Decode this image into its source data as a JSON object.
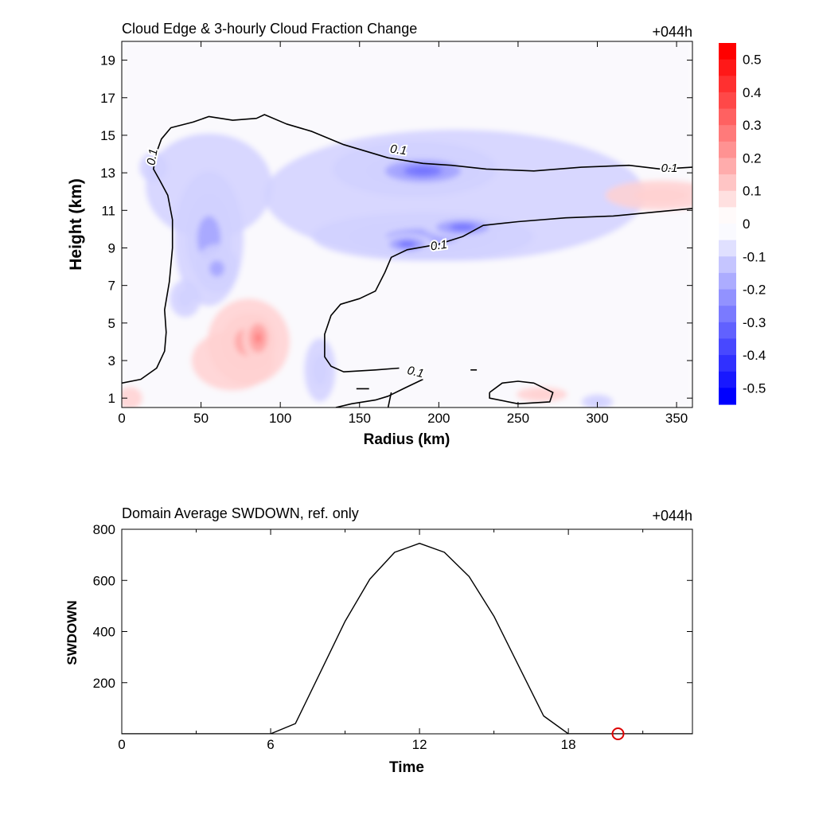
{
  "colors": {
    "positive": "#ff0000",
    "negative": "#0000ff",
    "contour": "#000000",
    "marker": "#dd0000"
  },
  "chart_data": [
    {
      "type": "heatmap",
      "title": "Cloud Edge & 3-hourly Cloud Fraction Change",
      "time_label": "+044h",
      "xlabel": "Radius (km)",
      "ylabel": "Height (km)",
      "xlim": [
        0,
        360
      ],
      "ylim": [
        0.5,
        20
      ],
      "xticks": [
        "0",
        "50",
        "100",
        "150",
        "200",
        "250",
        "300",
        "350"
      ],
      "yticks": [
        "1",
        "3",
        "5",
        "7",
        "9",
        "11",
        "13",
        "15",
        "17",
        "19"
      ],
      "colorbar": {
        "min": -0.55,
        "max": 0.55,
        "levels": 22,
        "labels": [
          "0.5",
          "0.4",
          "0.3",
          "0.2",
          "0.1",
          "0",
          "-0.1",
          "-0.2",
          "-0.3",
          "-0.4",
          "-0.5"
        ]
      },
      "contour_value": "0.1",
      "contour_labels": [
        "0.1",
        "0.1",
        "0.1",
        "0.1",
        "0.1"
      ],
      "features": [
        {
          "sign": "negative",
          "x": 190,
          "y": 13.1,
          "rx": 36,
          "ry": 0.9,
          "v": -0.32
        },
        {
          "sign": "negative",
          "x": 185,
          "y": 13.2,
          "rx": 52,
          "ry": 1.5,
          "v": -0.12
        },
        {
          "sign": "negative",
          "x": 215,
          "y": 10.1,
          "rx": 25,
          "ry": 0.6,
          "v": -0.3
        },
        {
          "sign": "negative",
          "x": 180,
          "y": 9.2,
          "rx": 17,
          "ry": 0.55,
          "v": -0.3
        },
        {
          "sign": "negative",
          "x": 190,
          "y": 9.6,
          "rx": 70,
          "ry": 1.3,
          "v": -0.15
        },
        {
          "sign": "negative",
          "x": 55,
          "y": 9.5,
          "rx": 22,
          "ry": 3.6,
          "v": -0.13
        },
        {
          "sign": "negative",
          "x": 60,
          "y": 7.9,
          "rx": 14,
          "ry": 1.3,
          "v": -0.14
        },
        {
          "sign": "negative",
          "x": 40,
          "y": 6.3,
          "rx": 10,
          "ry": 1.0,
          "v": -0.12
        },
        {
          "sign": "negative",
          "x": 55,
          "y": 12.3,
          "rx": 40,
          "ry": 2.8,
          "v": -0.07
        },
        {
          "sign": "negative",
          "x": 20,
          "y": 13.3,
          "rx": 9,
          "ry": 0.8,
          "v": -0.1
        },
        {
          "sign": "negative",
          "x": 125,
          "y": 2.5,
          "rx": 10,
          "ry": 1.7,
          "v": -0.12
        },
        {
          "sign": "negative",
          "x": 210,
          "y": 11.8,
          "rx": 120,
          "ry": 3.5,
          "v": -0.05
        },
        {
          "sign": "negative",
          "x": 300,
          "y": 0.8,
          "rx": 10,
          "ry": 0.4,
          "v": -0.12
        },
        {
          "sign": "positive",
          "x": 86,
          "y": 4.2,
          "rx": 10,
          "ry": 1.3,
          "v": 0.26
        },
        {
          "sign": "positive",
          "x": 80,
          "y": 4.0,
          "rx": 26,
          "ry": 2.3,
          "v": 0.13
        },
        {
          "sign": "positive",
          "x": 70,
          "y": 3.0,
          "rx": 26,
          "ry": 1.6,
          "v": 0.07
        },
        {
          "sign": "positive",
          "x": 340,
          "y": 11.8,
          "rx": 35,
          "ry": 0.8,
          "v": 0.1
        },
        {
          "sign": "positive",
          "x": 265,
          "y": 1.2,
          "rx": 16,
          "ry": 0.4,
          "v": 0.08
        },
        {
          "sign": "positive",
          "x": 5,
          "y": 1.0,
          "rx": 8,
          "ry": 0.6,
          "v": 0.06
        }
      ],
      "contours": [
        [
          [
            0,
            1.8
          ],
          [
            12,
            2.0
          ],
          [
            22,
            2.6
          ],
          [
            27,
            3.5
          ],
          [
            28,
            4.5
          ],
          [
            27,
            5.7
          ],
          [
            30,
            7.2
          ],
          [
            32,
            9.0
          ],
          [
            32,
            10.5
          ],
          [
            29,
            11.8
          ],
          [
            24,
            12.6
          ],
          [
            20,
            13.2
          ],
          [
            22,
            14.1
          ],
          [
            25,
            14.8
          ],
          [
            31,
            15.4
          ],
          [
            45,
            15.7
          ],
          [
            55,
            16.0
          ],
          [
            70,
            15.8
          ],
          [
            85,
            15.9
          ],
          [
            90,
            16.1
          ],
          [
            104,
            15.6
          ],
          [
            120,
            15.2
          ],
          [
            140,
            14.5
          ],
          [
            152,
            14.2
          ],
          [
            168,
            13.8
          ],
          [
            190,
            13.5
          ],
          [
            208,
            13.4
          ],
          [
            230,
            13.2
          ],
          [
            260,
            13.1
          ],
          [
            290,
            13.3
          ],
          [
            320,
            13.4
          ],
          [
            340,
            13.2
          ],
          [
            360,
            13.3
          ]
        ],
        [
          [
            135,
            0.5
          ],
          [
            145,
            0.7
          ],
          [
            160,
            0.9
          ],
          [
            168,
            1.1
          ],
          [
            180,
            1.6
          ],
          [
            190,
            2.0
          ]
        ],
        [
          [
            170,
            1.3
          ],
          [
            168,
            0.5
          ]
        ],
        [
          [
            175,
            2.6
          ],
          [
            160,
            2.5
          ],
          [
            140,
            2.4
          ],
          [
            132,
            2.7
          ],
          [
            128,
            3.2
          ],
          [
            128,
            4.4
          ],
          [
            132,
            5.4
          ],
          [
            138,
            6.0
          ],
          [
            150,
            6.3
          ],
          [
            160,
            6.7
          ],
          [
            166,
            7.7
          ],
          [
            170,
            8.5
          ],
          [
            180,
            8.9
          ],
          [
            200,
            9.2
          ],
          [
            215,
            9.6
          ],
          [
            228,
            10.2
          ],
          [
            250,
            10.4
          ],
          [
            280,
            10.6
          ],
          [
            310,
            10.7
          ],
          [
            335,
            10.9
          ],
          [
            360,
            11.1
          ]
        ],
        [
          [
            232,
            1.3
          ],
          [
            240,
            1.8
          ],
          [
            250,
            1.9
          ],
          [
            260,
            1.8
          ],
          [
            272,
            1.3
          ],
          [
            270,
            0.8
          ],
          [
            250,
            0.7
          ],
          [
            232,
            1.0
          ],
          [
            232,
            1.3
          ]
        ],
        [
          [
            148,
            1.5
          ],
          [
            156,
            1.5
          ]
        ],
        [
          [
            220,
            2.5
          ],
          [
            224,
            2.5
          ]
        ]
      ]
    },
    {
      "type": "line",
      "title": "Domain Average SWDOWN, ref. only",
      "time_label": "+044h",
      "xlabel": "Time",
      "ylabel": "SWDOWN",
      "xlim": [
        0,
        23
      ],
      "ylim": [
        0,
        800
      ],
      "xticks": [
        "0",
        "6",
        "12",
        "18"
      ],
      "yticks": [
        "200",
        "400",
        "600",
        "800"
      ],
      "x": [
        0,
        1,
        2,
        3,
        4,
        5,
        6,
        7,
        8,
        9,
        10,
        11,
        12,
        13,
        14,
        15,
        16,
        17,
        18,
        19,
        20,
        21,
        22,
        23
      ],
      "y": [
        0,
        0,
        0,
        0,
        0,
        0,
        0,
        40,
        240,
        440,
        605,
        710,
        745,
        710,
        615,
        460,
        265,
        70,
        0,
        0,
        0,
        0,
        0,
        0
      ],
      "marker": {
        "x": 20,
        "y": 0
      }
    }
  ]
}
